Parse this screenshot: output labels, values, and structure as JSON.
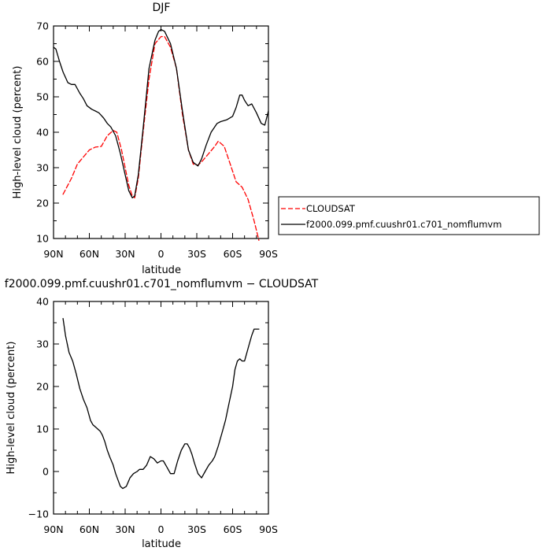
{
  "chart_data": [
    {
      "type": "line",
      "title": "DJF",
      "xlabel": "latitude",
      "ylabel": "High-level cloud  (percent)",
      "x_axis": "latitude, 90 = 90N, -90 = 90S (reversed, north on left)",
      "xlim": [
        90,
        -90
      ],
      "ylim": [
        10,
        70
      ],
      "xticks": [
        90,
        60,
        30,
        0,
        -30,
        -60,
        -90
      ],
      "xtick_labels": [
        "90N",
        "60N",
        "30N",
        "0",
        "30S",
        "60S",
        "90S"
      ],
      "yticks": [
        10,
        20,
        30,
        40,
        50,
        60,
        70
      ],
      "ytick_labels": [
        "10",
        "20",
        "30",
        "40",
        "50",
        "60",
        "70"
      ],
      "legend_position": "right",
      "series": [
        {
          "name": "CLOUDSAT",
          "color": "#ff0000",
          "dash": "dashed",
          "x": [
            82,
            75,
            70,
            65,
            60,
            55,
            50,
            45,
            40,
            37,
            33,
            30,
            27,
            24,
            22,
            19,
            15,
            10,
            5,
            0,
            -3,
            -8,
            -13,
            -18,
            -23,
            -27,
            -31,
            -35,
            -40,
            -45,
            -48,
            -53,
            -58,
            -63,
            -68,
            -73,
            -78,
            -82
          ],
          "y": [
            22.5,
            27,
            31,
            33,
            35,
            35.8,
            36,
            39,
            40.5,
            40,
            35,
            30,
            25,
            22,
            21.5,
            27,
            40,
            55,
            65,
            67,
            67,
            64,
            58,
            45,
            35,
            31,
            30.7,
            32,
            34,
            36,
            37.5,
            36,
            31,
            26,
            24.5,
            21,
            15,
            9.5
          ]
        },
        {
          "name": "f2000.099.pmf.cuushr01.c701_nomflumvm",
          "color": "#000000",
          "dash": "solid",
          "x": [
            90,
            88,
            85,
            82,
            78,
            75,
            72,
            68,
            65,
            62,
            58,
            55,
            52,
            48,
            45,
            42,
            38,
            34,
            30,
            27,
            24,
            22,
            19,
            15,
            10,
            5,
            2,
            0,
            -3,
            -8,
            -13,
            -18,
            -23,
            -27,
            -31,
            -34,
            -38,
            -42,
            -47,
            -50,
            -55,
            -60,
            -63,
            -66,
            -68,
            -70,
            -73,
            -76,
            -80,
            -84,
            -87,
            -90
          ],
          "y": [
            64,
            63.5,
            60,
            57,
            54,
            53.5,
            53.5,
            51,
            49.5,
            47.5,
            46.5,
            46,
            45.5,
            44,
            42.5,
            41.5,
            39,
            34,
            28,
            23.5,
            21.5,
            22,
            28,
            41,
            58,
            66,
            68.5,
            69,
            68.5,
            65,
            58,
            46,
            35,
            31.5,
            30.5,
            32.5,
            36.5,
            40,
            42.5,
            43,
            43.5,
            44.5,
            47,
            50.5,
            50.5,
            49,
            47.5,
            48,
            45.5,
            42.5,
            42,
            46
          ]
        }
      ]
    },
    {
      "type": "line",
      "title": "f2000.099.pmf.cuushr01.c701_nomflumvm  −  CLOUDSAT",
      "xlabel": "latitude",
      "ylabel": "High-level cloud  (percent)",
      "x_axis": "latitude, 90 = 90N, -90 = 90S (reversed, north on left)",
      "xlim": [
        90,
        -90
      ],
      "ylim": [
        -10,
        40
      ],
      "xticks": [
        90,
        60,
        30,
        0,
        -30,
        -60,
        -90
      ],
      "xtick_labels": [
        "90N",
        "60N",
        "30N",
        "0",
        "30S",
        "60S",
        "90S"
      ],
      "yticks": [
        -10,
        0,
        10,
        20,
        30,
        40
      ],
      "ytick_labels": [
        "−10",
        "0",
        "10",
        "20",
        "30",
        "40"
      ],
      "series": [
        {
          "name": "",
          "color": "#000000",
          "dash": "solid",
          "x": [
            82,
            80,
            77,
            74,
            71,
            68,
            65,
            62,
            59,
            57,
            55,
            53,
            51,
            49,
            47,
            45,
            43,
            40,
            38,
            36,
            34,
            32,
            29,
            26,
            23,
            20,
            18,
            15,
            12,
            9,
            6,
            3,
            0,
            -2,
            -5,
            -8,
            -11,
            -14,
            -17,
            -20,
            -22,
            -24,
            -26,
            -28,
            -31,
            -34,
            -37,
            -40,
            -43,
            -45,
            -48,
            -51,
            -54,
            -57,
            -60,
            -62,
            -64,
            -66,
            -68,
            -70,
            -72,
            -74,
            -76,
            -78,
            -80,
            -82
          ],
          "y": [
            36,
            32,
            28,
            26,
            23,
            19.5,
            17,
            15,
            12,
            11,
            10.5,
            10,
            9.5,
            8.5,
            7,
            5,
            3.5,
            1.5,
            -0.5,
            -2,
            -3.5,
            -4,
            -3.5,
            -1.5,
            -0.5,
            0,
            0.5,
            0.5,
            1.5,
            3.5,
            3,
            2,
            2.5,
            2.5,
            1,
            -0.5,
            -0.5,
            2.5,
            5,
            6.5,
            6.5,
            5.5,
            4,
            2,
            -0.5,
            -1.5,
            0,
            1.5,
            2.5,
            3.5,
            6,
            9,
            12,
            16,
            20,
            24,
            26,
            26.5,
            26,
            26,
            28,
            30,
            32,
            33.5,
            33.5,
            33.5
          ]
        }
      ]
    }
  ]
}
